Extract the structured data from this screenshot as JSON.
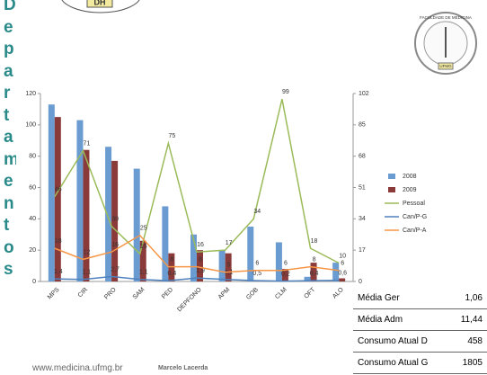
{
  "title": "Departamentos",
  "logo": {
    "top": "DH",
    "seal": "FACULDADE DE MEDICINA",
    "seal_bottom": "UFMG"
  },
  "chart_data": {
    "type": "bar",
    "categories": [
      "MPS",
      "CIR",
      "PRO",
      "SAM",
      "PED",
      "DEPFONO",
      "APM",
      "GOB",
      "CLM",
      "OFT",
      "ALO"
    ],
    "series": [
      {
        "name": "2008",
        "type": "bar",
        "color": "#6a9bd1",
        "values": [
          113,
          103,
          86,
          72,
          48,
          30,
          20,
          35,
          25,
          3,
          12
        ]
      },
      {
        "name": "2009",
        "type": "bar",
        "color": "#8b3a3a",
        "values": [
          105,
          84,
          77,
          26,
          18,
          20,
          18,
          0,
          8,
          12,
          2
        ]
      },
      {
        "name": "Pessoal",
        "type": "line",
        "axis": "y2",
        "color": "#9bbb59",
        "values": [
          46,
          71,
          30,
          15,
          75,
          16,
          17,
          34,
          99,
          18,
          10
        ]
      },
      {
        "name": "Can/P-G",
        "type": "line",
        "axis": "y2",
        "color": "#4f81bd",
        "values": [
          1.4,
          1.1,
          2.7,
          1.1,
          0.4,
          1.9,
          1.1,
          0.5,
          0.2,
          0.4,
          0.6
        ],
        "value_labels": [
          "1,4",
          "1,1",
          "2,7",
          "1,1",
          "0,4",
          "1,9",
          "1,1",
          "0,5",
          "0,2",
          "0,4",
          "0,6"
        ]
      },
      {
        "name": "Can/P-A",
        "type": "line",
        "axis": "y2",
        "color": "#f79646",
        "values": [
          18,
          12,
          16,
          25,
          8,
          8,
          5,
          6,
          6,
          8,
          6
        ]
      }
    ],
    "ylim": [
      0,
      120
    ],
    "yticks": [
      0,
      20,
      40,
      60,
      80,
      100,
      120
    ],
    "y2lim": [
      0,
      102
    ],
    "y2ticks": [
      0,
      17,
      34,
      51,
      68,
      85,
      102
    ],
    "legend": "right"
  },
  "table": {
    "rows": [
      [
        "Média Ger",
        "1,06"
      ],
      [
        "Média Adm",
        "11,44"
      ],
      [
        "Consumo Atual D",
        "458"
      ],
      [
        "Consumo Atual G",
        "1805"
      ]
    ]
  },
  "footer": {
    "url": "www.medicina.ufmg.br",
    "author": "Marcelo Lacerda"
  }
}
